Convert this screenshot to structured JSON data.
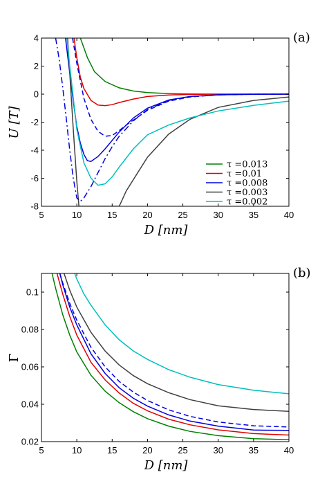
{
  "chart_data": [
    {
      "type": "line",
      "panel_label": "(a)",
      "xlabel": "D [nm]",
      "ylabel": "U [T]",
      "xlim": [
        5,
        40
      ],
      "ylim": [
        -8,
        4
      ],
      "xticks": [
        5,
        10,
        15,
        20,
        25,
        30,
        35,
        40
      ],
      "yticks": [
        -8,
        -6,
        -4,
        -2,
        0,
        2,
        4
      ],
      "legend_position": "bottom-right",
      "series": [
        {
          "name": "τ =0.013",
          "color": "#008000",
          "dash": "solid",
          "x": [
            10.5,
            11.5,
            12.5,
            14,
            16,
            18,
            20,
            23,
            26,
            30,
            35,
            40
          ],
          "y": [
            4.0,
            2.6,
            1.6,
            0.9,
            0.45,
            0.22,
            0.11,
            0.04,
            0.01,
            0.0,
            0.0,
            0.0
          ]
        },
        {
          "name": "τ =0.01",
          "color": "#e00000",
          "dash": "solid",
          "x": [
            9.6,
            10,
            10.5,
            11,
            12,
            13,
            14,
            15,
            16,
            18,
            20,
            23,
            26,
            30,
            35,
            40
          ],
          "y": [
            4.0,
            2.6,
            1.2,
            0.4,
            -0.45,
            -0.78,
            -0.82,
            -0.75,
            -0.6,
            -0.35,
            -0.17,
            -0.06,
            -0.02,
            0.0,
            0.0,
            0.0
          ]
        },
        {
          "name": "τ =0.008",
          "color": "#0000e0",
          "dash": "solid",
          "x": [
            8.4,
            9,
            9.5,
            10,
            10.5,
            11,
            11.5,
            12,
            13,
            14,
            16,
            18,
            20,
            23,
            26,
            30,
            35,
            40
          ],
          "y": [
            4.0,
            1.5,
            -0.5,
            -2.3,
            -3.5,
            -4.3,
            -4.75,
            -4.8,
            -4.45,
            -3.9,
            -2.7,
            -1.7,
            -1.0,
            -0.42,
            -0.17,
            -0.05,
            -0.01,
            0.0
          ]
        },
        {
          "name": "τ =0.003",
          "color": "#404040",
          "dash": "solid",
          "x": [
            8.7,
            9,
            9.5,
            10,
            10.3,
            16,
            17,
            20,
            23,
            26,
            30,
            35,
            40
          ],
          "y": [
            4.0,
            1.5,
            -2.5,
            -6.2,
            -8.0,
            -8.0,
            -6.9,
            -4.5,
            -2.85,
            -1.8,
            -0.95,
            -0.45,
            -0.2
          ]
        },
        {
          "name": "τ =0.002",
          "color": "#00bfbf",
          "dash": "solid",
          "x": [
            8.6,
            9,
            10,
            11,
            12,
            13,
            14,
            15,
            16,
            18,
            20,
            23,
            26,
            30,
            35,
            40
          ],
          "y": [
            4.0,
            2.0,
            -2.5,
            -4.9,
            -6.0,
            -6.5,
            -6.4,
            -5.9,
            -5.2,
            -3.9,
            -2.9,
            -2.2,
            -1.7,
            -1.2,
            -0.8,
            -0.5
          ]
        },
        {
          "color": "#0000e0",
          "dash": "dashed",
          "x": [
            9.4,
            10,
            11,
            12,
            13,
            14,
            15,
            16,
            17,
            18,
            20,
            23,
            26,
            30,
            35,
            40
          ],
          "y": [
            4.0,
            2.2,
            -0.3,
            -1.8,
            -2.65,
            -3.0,
            -2.95,
            -2.6,
            -2.2,
            -1.85,
            -1.15,
            -0.5,
            -0.2,
            -0.05,
            0.0,
            0.0
          ]
        },
        {
          "color": "#0000e0",
          "dash": "dashdot",
          "x": [
            7.0,
            7.5,
            8,
            8.5,
            9,
            9.5,
            10,
            10.5,
            11,
            12,
            13,
            14,
            15,
            16,
            18,
            20,
            23,
            26,
            30,
            35,
            40
          ],
          "y": [
            4.0,
            2.5,
            0.5,
            -1.7,
            -4.0,
            -6.0,
            -7.4,
            -7.65,
            -7.4,
            -6.6,
            -5.6,
            -4.6,
            -3.75,
            -3.0,
            -1.9,
            -1.1,
            -0.45,
            -0.17,
            -0.05,
            -0.01,
            0.0
          ]
        }
      ]
    },
    {
      "type": "line",
      "panel_label": "(b)",
      "xlabel": "D [nm]",
      "ylabel": "Γ",
      "xlim": [
        5,
        40
      ],
      "ylim": [
        0.02,
        0.11
      ],
      "xticks": [
        5,
        10,
        15,
        20,
        25,
        30,
        35,
        40
      ],
      "yticks": [
        0.02,
        0.04,
        0.06,
        0.08,
        0.1
      ],
      "series": [
        {
          "color": "#008000",
          "dash": "solid",
          "x": [
            6.5,
            7,
            8,
            9,
            10,
            12,
            14,
            16,
            18,
            20,
            23,
            26,
            30,
            35,
            40
          ],
          "y": [
            0.11,
            0.102,
            0.088,
            0.077,
            0.068,
            0.0555,
            0.047,
            0.0408,
            0.036,
            0.0323,
            0.0283,
            0.0255,
            0.0232,
            0.0216,
            0.021
          ]
        },
        {
          "color": "#e00000",
          "dash": "solid",
          "x": [
            7.2,
            8,
            9,
            10,
            12,
            14,
            16,
            18,
            20,
            23,
            26,
            30,
            35,
            40
          ],
          "y": [
            0.11,
            0.099,
            0.087,
            0.077,
            0.0625,
            0.053,
            0.046,
            0.0405,
            0.0365,
            0.032,
            0.029,
            0.0263,
            0.0243,
            0.0235
          ]
        },
        {
          "color": "#0000e0",
          "dash": "solid",
          "x": [
            7.6,
            8,
            9,
            10,
            12,
            14,
            16,
            18,
            20,
            23,
            26,
            30,
            35,
            40
          ],
          "y": [
            0.11,
            0.104,
            0.092,
            0.0825,
            0.067,
            0.0565,
            0.0488,
            0.0432,
            0.039,
            0.0343,
            0.031,
            0.0283,
            0.0262,
            0.026
          ]
        },
        {
          "color": "#0000e0",
          "dash": "dashed",
          "x": [
            7.6,
            8,
            9,
            10,
            12,
            14,
            16,
            18,
            20,
            23,
            26,
            30,
            35,
            40
          ],
          "y": [
            0.11,
            0.105,
            0.094,
            0.085,
            0.0705,
            0.06,
            0.0522,
            0.0465,
            0.042,
            0.037,
            0.0335,
            0.0305,
            0.0285,
            0.0278
          ]
        },
        {
          "color": "#404040",
          "dash": "solid",
          "x": [
            8.2,
            9,
            10,
            12,
            14,
            16,
            18,
            20,
            23,
            26,
            30,
            35,
            40
          ],
          "y": [
            0.11,
            0.101,
            0.092,
            0.0785,
            0.0685,
            0.061,
            0.0553,
            0.051,
            0.0462,
            0.0425,
            0.0392,
            0.0372,
            0.0362
          ]
        },
        {
          "color": "#00bfbf",
          "dash": "solid",
          "x": [
            9.7,
            10,
            11,
            12,
            14,
            16,
            18,
            20,
            23,
            26,
            30,
            35,
            40
          ],
          "y": [
            0.11,
            0.107,
            0.099,
            0.093,
            0.0825,
            0.0745,
            0.0685,
            0.064,
            0.0585,
            0.0545,
            0.0505,
            0.0475,
            0.0456
          ]
        }
      ]
    }
  ]
}
